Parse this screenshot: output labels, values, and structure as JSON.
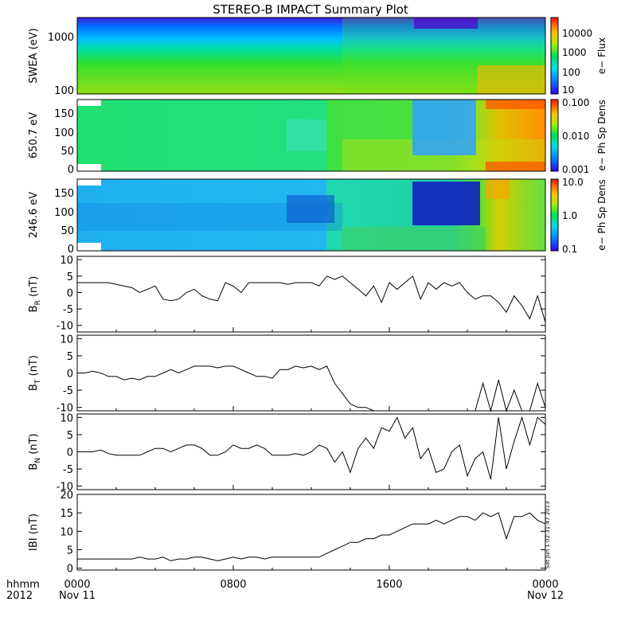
{
  "title": "STEREO-B IMPACT Summary Plot",
  "side_stamp": "Sat Jun 1 02:31:47 2013",
  "x_axis": {
    "corner_labels": [
      "hhmm",
      "2012"
    ],
    "ticks": [
      {
        "hhmm": "0000",
        "date": "Nov 11"
      },
      {
        "hhmm": "0800",
        "date": ""
      },
      {
        "hhmm": "1600",
        "date": ""
      },
      {
        "hhmm": "0000",
        "date": "Nov 12"
      }
    ],
    "range_hours": [
      0,
      24
    ]
  },
  "chart_data": [
    {
      "type": "heatmap",
      "ylabel": "SWEA (eV)",
      "y_scale": "log",
      "ylim": [
        100,
        2000
      ],
      "yticks": [
        "100",
        "1000"
      ],
      "colorbar": {
        "label": "e− Flux",
        "scale": "log",
        "ticks": [
          "10",
          "100",
          "1000",
          "10000"
        ]
      }
    },
    {
      "type": "heatmap",
      "ylabel": "650.7 eV",
      "ylim": [
        0,
        180
      ],
      "yticks": [
        "0",
        "50",
        "100",
        "150"
      ],
      "colorbar": {
        "label": "e− Ph Sp Dens",
        "scale": "log",
        "ticks": [
          "0.001",
          "0.010",
          "0.100"
        ]
      }
    },
    {
      "type": "heatmap",
      "ylabel": "246.6 eV",
      "ylim": [
        0,
        180
      ],
      "yticks": [
        "0",
        "50",
        "100",
        "150"
      ],
      "colorbar": {
        "label": "e− Ph Sp Dens",
        "scale": "log",
        "ticks": [
          "0.1",
          "1.0",
          "10.0"
        ]
      }
    },
    {
      "type": "line",
      "ylabel": "B_R (nT)",
      "ylabel_main": "B",
      "ylabel_sub": "R",
      "ylabel_tail": " (nT)",
      "ylim": [
        -12,
        11
      ],
      "yticks": [
        "-10",
        "-5",
        "0",
        "5",
        "10"
      ],
      "x": [
        0,
        0.4,
        0.8,
        1.2,
        1.6,
        2.0,
        2.4,
        2.8,
        3.2,
        3.6,
        4.0,
        4.4,
        4.8,
        5.2,
        5.6,
        6.0,
        6.4,
        6.8,
        7.2,
        7.6,
        8.0,
        8.4,
        8.8,
        9.2,
        9.6,
        10.0,
        10.4,
        10.8,
        11.2,
        11.6,
        12.0,
        12.4,
        12.8,
        13.2,
        13.6,
        14.0,
        14.4,
        14.8,
        15.2,
        15.6,
        16.0,
        16.4,
        16.8,
        17.2,
        17.6,
        18.0,
        18.4,
        18.8,
        19.2,
        19.6,
        20.0,
        20.4,
        20.8,
        21.2,
        21.6,
        22.0,
        22.4,
        22.8,
        23.2,
        23.6,
        24.0
      ],
      "y": [
        3,
        3,
        3,
        3,
        3,
        2.5,
        2,
        1.5,
        0,
        1,
        2,
        -2,
        -2.5,
        -2,
        0,
        1,
        -1,
        -2,
        -2.5,
        3,
        2,
        0,
        3,
        3,
        3,
        3,
        3,
        2.5,
        3,
        3,
        3,
        2,
        5,
        4,
        5,
        3,
        1,
        -1,
        2,
        -3,
        3,
        1,
        3,
        5,
        -2,
        3,
        1,
        3,
        2,
        3,
        0,
        -2,
        -1,
        -1,
        -3,
        -6,
        -1,
        -4,
        -8,
        -1,
        -9
      ]
    },
    {
      "type": "line",
      "ylabel": "B_T (nT)",
      "ylabel_main": "B",
      "ylabel_sub": "T",
      "ylabel_tail": " (nT)",
      "ylim": [
        -11,
        11
      ],
      "yticks": [
        "-10",
        "-5",
        "0",
        "5",
        "10"
      ],
      "x": [
        0,
        0.4,
        0.8,
        1.2,
        1.6,
        2.0,
        2.4,
        2.8,
        3.2,
        3.6,
        4.0,
        4.4,
        4.8,
        5.2,
        5.6,
        6.0,
        6.4,
        6.8,
        7.2,
        7.6,
        8.0,
        8.4,
        8.8,
        9.2,
        9.6,
        10.0,
        10.4,
        10.8,
        11.2,
        11.6,
        12.0,
        12.4,
        12.8,
        13.2,
        13.6,
        14.0,
        14.4,
        14.8,
        15.2,
        15.6,
        16.0,
        16.4,
        16.8,
        17.2,
        17.6,
        18.0,
        18.4,
        18.8,
        19.2,
        19.6,
        20.0,
        20.4,
        20.8,
        21.2,
        21.6,
        22.0,
        22.4,
        22.8,
        23.2,
        23.6,
        24.0
      ],
      "y": [
        0,
        0,
        0.5,
        0,
        -1,
        -1,
        -2,
        -1.5,
        -2,
        -1,
        -1,
        0,
        1,
        0,
        1,
        2,
        2,
        2,
        1.5,
        2,
        2,
        1,
        0,
        -1,
        -1,
        -1.5,
        1,
        1,
        2,
        1.5,
        2,
        1,
        2,
        -3,
        -6,
        -9,
        -10,
        -10,
        -11,
        -11,
        -11,
        -11,
        -11,
        -11,
        -11,
        -11,
        -11,
        -11,
        -11,
        -11,
        -11,
        -11,
        -3,
        -11,
        -2,
        -11,
        -5,
        -11,
        -11,
        -3,
        -10
      ]
    },
    {
      "type": "line",
      "ylabel": "B_N (nT)",
      "ylabel_main": "B",
      "ylabel_sub": "N",
      "ylabel_tail": " (nT)",
      "ylim": [
        -11,
        11
      ],
      "yticks": [
        "-10",
        "-5",
        "0",
        "5",
        "10"
      ],
      "x": [
        0,
        0.4,
        0.8,
        1.2,
        1.6,
        2.0,
        2.4,
        2.8,
        3.2,
        3.6,
        4.0,
        4.4,
        4.8,
        5.2,
        5.6,
        6.0,
        6.4,
        6.8,
        7.2,
        7.6,
        8.0,
        8.4,
        8.8,
        9.2,
        9.6,
        10.0,
        10.4,
        10.8,
        11.2,
        11.6,
        12.0,
        12.4,
        12.8,
        13.2,
        13.6,
        14.0,
        14.4,
        14.8,
        15.2,
        15.6,
        16.0,
        16.4,
        16.8,
        17.2,
        17.6,
        18.0,
        18.4,
        18.8,
        19.2,
        19.6,
        20.0,
        20.4,
        20.8,
        21.2,
        21.6,
        22.0,
        22.4,
        22.8,
        23.2,
        23.6,
        24.0
      ],
      "y": [
        0,
        0,
        0,
        0.5,
        -0.5,
        -1,
        -1,
        -1,
        -1,
        0,
        1,
        1,
        0,
        1,
        2,
        2,
        1,
        -1,
        -1,
        0,
        2,
        1,
        1,
        2,
        1,
        -1,
        -1,
        -1,
        -0.5,
        -1,
        0,
        2,
        1,
        -3,
        0,
        -6,
        1,
        4,
        1,
        7,
        6,
        10,
        4,
        7,
        -2,
        1,
        -6,
        -5,
        0,
        2,
        -7,
        -2,
        0,
        -8,
        10,
        -5,
        3,
        10,
        2,
        10,
        8
      ]
    },
    {
      "type": "line",
      "ylabel": "|B| (nT)",
      "ylabel_main": "IBI (nT)",
      "ylabel_sub": "",
      "ylabel_tail": "",
      "ylim": [
        -0.5,
        20
      ],
      "yticks": [
        "0",
        "5",
        "10",
        "15",
        "20"
      ],
      "x": [
        0,
        0.4,
        0.8,
        1.2,
        1.6,
        2.0,
        2.4,
        2.8,
        3.2,
        3.6,
        4.0,
        4.4,
        4.8,
        5.2,
        5.6,
        6.0,
        6.4,
        6.8,
        7.2,
        7.6,
        8.0,
        8.4,
        8.8,
        9.2,
        9.6,
        10.0,
        10.4,
        10.8,
        11.2,
        11.6,
        12.0,
        12.4,
        12.8,
        13.2,
        13.6,
        14.0,
        14.4,
        14.8,
        15.2,
        15.6,
        16.0,
        16.4,
        16.8,
        17.2,
        17.6,
        18.0,
        18.4,
        18.8,
        19.2,
        19.6,
        20.0,
        20.4,
        20.8,
        21.2,
        21.6,
        22.0,
        22.4,
        22.8,
        23.2,
        23.6,
        24.0
      ],
      "y": [
        2.5,
        2.5,
        2.5,
        2.5,
        2.5,
        2.5,
        2.5,
        2.5,
        3,
        2.5,
        2.5,
        3,
        2,
        2.5,
        2.5,
        3,
        3,
        2.5,
        2,
        2.5,
        3,
        2.5,
        3,
        3,
        2.5,
        3,
        3,
        3,
        3,
        3,
        3,
        3,
        4,
        5,
        6,
        7,
        7,
        8,
        8,
        9,
        9,
        10,
        11,
        12,
        12,
        12,
        13,
        12,
        13,
        14,
        14,
        13,
        15,
        14,
        15,
        8,
        14,
        14,
        15,
        13,
        12
      ]
    }
  ]
}
